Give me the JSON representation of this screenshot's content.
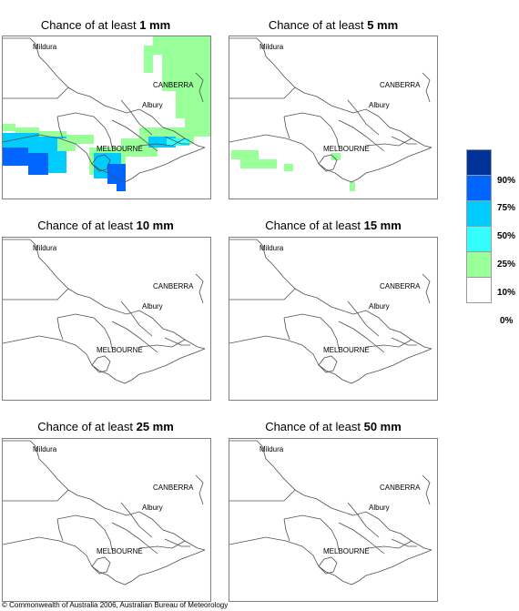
{
  "panels": [
    {
      "prefix": "Chance of at least ",
      "amount": "1 mm"
    },
    {
      "prefix": "Chance of at least ",
      "amount": "5 mm"
    },
    {
      "prefix": "Chance of at least ",
      "amount": "10 mm"
    },
    {
      "prefix": "Chance of at least ",
      "amount": "15 mm"
    },
    {
      "prefix": "Chance of at least ",
      "amount": "25 mm"
    },
    {
      "prefix": "Chance of at least ",
      "amount": "50 mm"
    }
  ],
  "cities": {
    "mildura": "Mildura",
    "canberra": "CANBERRA",
    "albury": "Albury",
    "melbourne": "MELBOURNE"
  },
  "legend": {
    "colors": [
      "#003399",
      "#0066ff",
      "#00ccff",
      "#33ffff",
      "#99ff99",
      "#ffffff"
    ],
    "labels": [
      "90%",
      "75%",
      "50%",
      "25%",
      "10%",
      "0%"
    ]
  },
  "copyright": "© Commonwealth of Australia 2006, Australian Bureau of Meteorology"
}
